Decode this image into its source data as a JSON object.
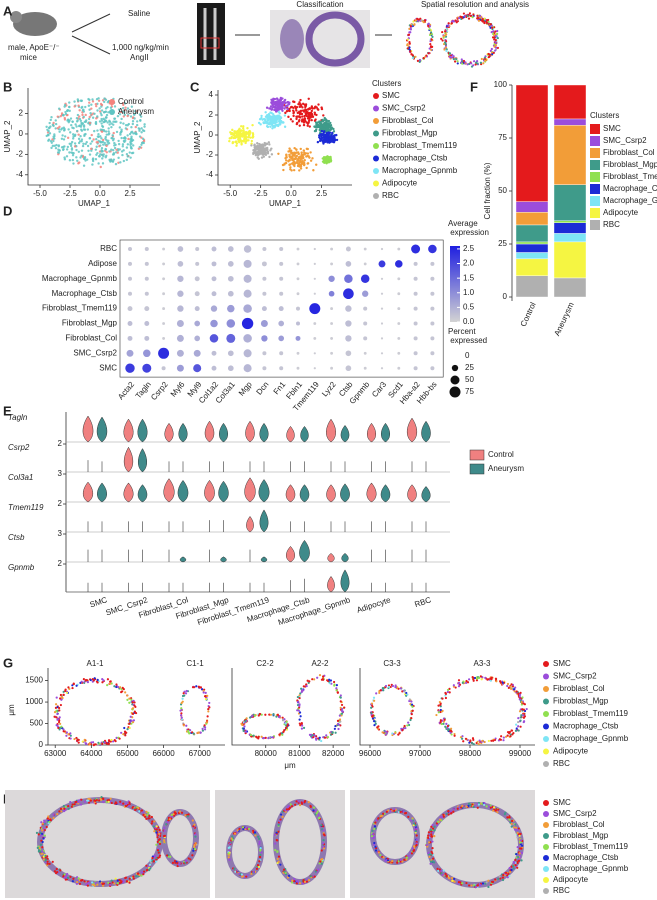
{
  "panel_labels": [
    "A",
    "B",
    "C",
    "D",
    "E",
    "F",
    "G",
    "H"
  ],
  "panel_a": {
    "mouse_label": [
      "male, ApoE⁻/⁻",
      "mice"
    ],
    "saline": "Saline",
    "angii": [
      "1,000 ng/kg/min",
      "AngII"
    ],
    "classification": "Classification",
    "spatial": "Spatial resolution and analysis"
  },
  "chart_data": [
    {
      "type": "scatter",
      "x_label": "UMAP_1",
      "y_label": "UMAP_2",
      "xlim": [
        -6,
        5
      ],
      "ylim": [
        -5,
        4.5
      ],
      "xticks": [
        {
          "value": -5,
          "label": "-5.0"
        },
        -2.5,
        {
          "value": 0,
          "label": "0.0"
        },
        2.5
      ],
      "yticks": [
        -4,
        -2,
        0,
        2
      ],
      "series": [
        {
          "name": "Control",
          "color": "#f4837d"
        },
        {
          "name": "Aneurysm",
          "color": "#5fc5c3"
        }
      ]
    },
    {
      "type": "scatter",
      "x_label": "UMAP_1",
      "y_label": "UMAP_2",
      "legend_title": "Clusters",
      "xlim": [
        -6,
        5
      ],
      "ylim": [
        -5,
        4.5
      ],
      "xticks": [
        {
          "value": -5,
          "label": "-5.0"
        },
        -2.5,
        {
          "value": 0,
          "label": "0.0"
        },
        2.5
      ],
      "yticks": [
        -4,
        -2,
        0,
        2,
        4
      ],
      "series": [
        {
          "name": "SMC",
          "color": "#e41a1c"
        },
        {
          "name": "SMC_Csrp2",
          "color": "#9b4ddb"
        },
        {
          "name": "Fibroblast_Col",
          "color": "#f29d38"
        },
        {
          "name": "Fibroblast_Mgp",
          "color": "#3f9b8a"
        },
        {
          "name": "Fibroblast_Tmem119",
          "color": "#90e050"
        },
        {
          "name": "Macrophage_Ctsb",
          "color": "#1c2bd6"
        },
        {
          "name": "Macrophage_Gpnmb",
          "color": "#7ee5f5"
        },
        {
          "name": "Adipocyte",
          "color": "#f5f542"
        },
        {
          "name": "RBC",
          "color": "#b0b0b0"
        }
      ]
    },
    {
      "type": "dot",
      "categories": [
        "Acta2",
        "Tagln",
        "Csrp2",
        "Myl6",
        "Myl9",
        "Col1a2",
        "Col3a1",
        "Mgp",
        "Dcn",
        "Fn1",
        "Fbln1",
        "Tmem119",
        "Lyz2",
        "Ctsb",
        "Gpnmb",
        "Car3",
        "Scd1",
        "Hba-a2",
        "Hbb-bs"
      ],
      "color_label": "Average expression",
      "clim": [
        0,
        2.6
      ],
      "low_color": "#d3d3d3",
      "high_color": "#1f1fe0",
      "color_ticks": [
        {
          "value": 0,
          "label": "0.0"
        },
        0.5,
        {
          "value": 1,
          "label": "1.0"
        },
        1.5,
        {
          "value": 2,
          "label": "2.0"
        },
        2.5
      ],
      "size_label": "Percent expressed",
      "size_ticks": [
        0,
        25,
        50,
        75
      ],
      "series": [
        {
          "name": "RBC",
          "values": [
            10,
            10,
            5,
            20,
            10,
            15,
            20,
            35,
            10,
            10,
            5,
            3,
            5,
            15,
            5,
            3,
            5,
            50,
            45
          ],
          "expression": [
            0.2,
            0.2,
            0.1,
            0.3,
            0.2,
            0.3,
            0.3,
            0.3,
            0.2,
            0.2,
            0.1,
            0.1,
            0.1,
            0.2,
            0.1,
            0.1,
            0.1,
            2.4,
            2.3
          ]
        },
        {
          "name": "Adipose",
          "values": [
            10,
            10,
            5,
            20,
            10,
            15,
            20,
            40,
            15,
            10,
            5,
            3,
            5,
            20,
            5,
            30,
            35,
            10,
            10
          ],
          "expression": [
            0.2,
            0.2,
            0.1,
            0.3,
            0.2,
            0.3,
            0.3,
            0.4,
            0.2,
            0.2,
            0.1,
            0.1,
            0.1,
            0.3,
            0.1,
            2.2,
            2.4,
            0.2,
            0.2
          ]
        },
        {
          "name": "Macrophage_Gpnmb",
          "values": [
            10,
            10,
            5,
            25,
            15,
            15,
            20,
            40,
            10,
            10,
            5,
            3,
            25,
            45,
            45,
            3,
            5,
            10,
            10
          ],
          "expression": [
            0.2,
            0.2,
            0.1,
            0.4,
            0.2,
            0.3,
            0.3,
            0.4,
            0.2,
            0.2,
            0.1,
            0.1,
            1.0,
            1.4,
            2.3,
            0.1,
            0.1,
            0.2,
            0.2
          ]
        },
        {
          "name": "Macrophage_Ctsb",
          "values": [
            10,
            10,
            5,
            25,
            15,
            15,
            20,
            40,
            10,
            10,
            5,
            3,
            20,
            70,
            25,
            3,
            5,
            10,
            10
          ],
          "expression": [
            0.2,
            0.2,
            0.1,
            0.4,
            0.2,
            0.3,
            0.3,
            0.4,
            0.2,
            0.2,
            0.1,
            0.1,
            1.2,
            2.4,
            0.8,
            0.1,
            0.1,
            0.2,
            0.2
          ]
        },
        {
          "name": "Fibroblast_Tmem119",
          "values": [
            15,
            15,
            5,
            25,
            15,
            25,
            35,
            45,
            15,
            15,
            10,
            75,
            5,
            25,
            10,
            3,
            5,
            10,
            10
          ],
          "expression": [
            0.2,
            0.2,
            0.1,
            0.4,
            0.3,
            0.6,
            0.8,
            0.6,
            0.3,
            0.3,
            0.2,
            2.5,
            0.1,
            0.3,
            0.2,
            0.1,
            0.1,
            0.2,
            0.2
          ]
        },
        {
          "name": "Fibroblast_Mgp",
          "values": [
            15,
            15,
            5,
            30,
            20,
            35,
            45,
            80,
            30,
            20,
            10,
            5,
            5,
            25,
            10,
            3,
            5,
            10,
            10
          ],
          "expression": [
            0.3,
            0.3,
            0.1,
            0.5,
            0.6,
            0.9,
            1.0,
            2.5,
            0.8,
            0.5,
            0.3,
            0.1,
            0.1,
            0.3,
            0.2,
            0.1,
            0.1,
            0.2,
            0.2
          ]
        },
        {
          "name": "Fibroblast_Col",
          "values": [
            15,
            15,
            5,
            30,
            20,
            45,
            50,
            45,
            25,
            20,
            15,
            5,
            5,
            25,
            10,
            3,
            5,
            10,
            10
          ],
          "expression": [
            0.3,
            0.3,
            0.1,
            0.5,
            0.5,
            1.8,
            1.6,
            0.5,
            1.0,
            0.8,
            0.9,
            0.1,
            0.1,
            0.3,
            0.2,
            0.1,
            0.1,
            0.2,
            0.2
          ]
        },
        {
          "name": "SMC_Csrp2",
          "values": [
            30,
            35,
            75,
            30,
            30,
            15,
            20,
            40,
            10,
            10,
            5,
            3,
            5,
            20,
            5,
            3,
            5,
            10,
            10
          ],
          "expression": [
            0.7,
            0.9,
            2.4,
            0.5,
            0.6,
            0.3,
            0.3,
            0.4,
            0.2,
            0.2,
            0.1,
            0.1,
            0.1,
            0.2,
            0.1,
            0.1,
            0.1,
            0.2,
            0.2
          ]
        },
        {
          "name": "SMC",
          "values": [
            55,
            50,
            10,
            30,
            40,
            15,
            20,
            40,
            10,
            10,
            5,
            3,
            5,
            20,
            5,
            3,
            5,
            10,
            10
          ],
          "expression": [
            2.2,
            2.1,
            0.2,
            0.8,
            1.8,
            0.3,
            0.3,
            0.4,
            0.2,
            0.2,
            0.1,
            0.1,
            0.1,
            0.2,
            0.1,
            0.1,
            0.1,
            0.2,
            0.2
          ]
        }
      ]
    },
    {
      "type": "violin",
      "genes": [
        "Tagln",
        "Csrp2",
        "Col3a1",
        "Tmem119",
        "Ctsb",
        "Gpnmb"
      ],
      "row_ticks": [
        null,
        2,
        3,
        2,
        3,
        2
      ],
      "categories": [
        "SMC",
        "SMC_Csrp2",
        "Fibroblast_Col",
        "Fibroblast_Mgp",
        "Fibroblast_Tmem119",
        "Macrophage_Ctsb",
        "Macrophage_Gpnmb",
        "Adipocyte",
        "RBC"
      ],
      "series": [
        {
          "name": "Control",
          "color": "#f08080",
          "values": [
            [
              2.5,
              2.2,
              1.8,
              2.0,
              2.0,
              1.5,
              2.2,
              1.8,
              2.3
            ],
            [
              0.3,
              1.9,
              0.2,
              0.2,
              0.2,
              0.2,
              0.2,
              0.2,
              0.2
            ],
            [
              2.3,
              2.2,
              2.7,
              2.5,
              2.8,
              2.0,
              2.0,
              2.2,
              2.0
            ],
            [
              0.2,
              0.2,
              0.2,
              0.3,
              1.2,
              0.2,
              0.2,
              0.2,
              0.2
            ],
            [
              0.5,
              0.5,
              0.5,
              0.5,
              0.5,
              1.8,
              1.0,
              0.5,
              0.5
            ],
            [
              0.1,
              0.1,
              0.1,
              0.1,
              0.1,
              0.3,
              1.2,
              0.1,
              0.1
            ]
          ]
        },
        {
          "name": "Aneurysm",
          "color": "#3f8a8a",
          "values": [
            [
              2.4,
              2.2,
              1.8,
              1.8,
              1.8,
              1.5,
              1.6,
              1.8,
              2.0
            ],
            [
              0.2,
              1.8,
              0.2,
              0.2,
              0.2,
              0.2,
              0.2,
              0.2,
              0.2
            ],
            [
              2.2,
              2.0,
              2.5,
              2.4,
              2.6,
              2.0,
              2.1,
              2.0,
              1.8
            ],
            [
              0.2,
              0.2,
              0.2,
              0.3,
              1.7,
              0.2,
              0.2,
              0.2,
              0.2
            ],
            [
              0.5,
              0.5,
              0.6,
              0.6,
              0.6,
              2.5,
              1.0,
              0.5,
              0.5
            ],
            [
              0.1,
              0.1,
              0.1,
              0.1,
              0.1,
              0.4,
              1.7,
              0.1,
              0.1
            ]
          ]
        }
      ]
    },
    {
      "type": "stacked_bar",
      "y_label": "Cell fraction (%)",
      "legend_title": "Clusters",
      "categories": [
        "Control",
        "Aneurysm"
      ],
      "ylim": [
        0,
        100
      ],
      "yticks": [
        0,
        25,
        50,
        75,
        100
      ],
      "series": [
        {
          "name": "RBC",
          "color": "#b0b0b0",
          "values": [
            10,
            9
          ]
        },
        {
          "name": "Adipocyte",
          "color": "#f5f542",
          "values": [
            8,
            17
          ]
        },
        {
          "name": "Macrophage_Gpnmb",
          "color": "#7ee5f5",
          "values": [
            3,
            4
          ]
        },
        {
          "name": "Macrophage_Ctsb",
          "color": "#1c2bd6",
          "values": [
            4,
            5
          ]
        },
        {
          "name": "Fibroblast_Tmem119",
          "color": "#90e050",
          "values": [
            1,
            1
          ]
        },
        {
          "name": "Fibroblast_Mgp",
          "color": "#3f9b8a",
          "values": [
            8,
            17
          ]
        },
        {
          "name": "Fibroblast_Col",
          "color": "#f29d38",
          "values": [
            6,
            28
          ]
        },
        {
          "name": "SMC_Csrp2",
          "color": "#9b4ddb",
          "values": [
            5,
            3
          ]
        },
        {
          "name": "SMC",
          "color": "#e41a1c",
          "values": [
            55,
            16
          ]
        }
      ]
    },
    {
      "type": "spatial",
      "x_label": "μm",
      "y_label": "μm",
      "ylim": [
        0,
        1700
      ],
      "yticks": [
        0,
        500,
        1000,
        1500
      ],
      "panels": [
        {
          "samples": [
            "A1-1",
            "C1-1"
          ],
          "xlim": [
            62800,
            67700
          ],
          "xticks": [
            63000,
            64000,
            65000,
            66000,
            67000
          ]
        },
        {
          "samples": [
            "C2-2",
            "A2-2"
          ],
          "xlim": [
            79000,
            82500
          ],
          "xticks": [
            80000,
            81000,
            82000
          ]
        },
        {
          "samples": [
            "C3-3",
            "A3-3"
          ],
          "xlim": [
            95800,
            99300
          ],
          "xticks": [
            96000,
            97000,
            98000,
            99000
          ]
        }
      ]
    }
  ]
}
